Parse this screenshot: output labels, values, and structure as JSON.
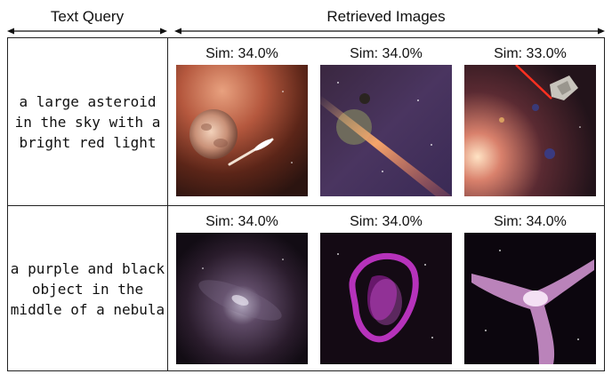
{
  "header": {
    "query_label": "Text Query",
    "results_label": "Retrieved Images"
  },
  "rows": [
    {
      "query": "a large asteroid in the sky with a bright red light",
      "results": [
        {
          "sim": "Sim: 34.0%"
        },
        {
          "sim": "Sim: 34.0%"
        },
        {
          "sim": "Sim: 33.0%"
        }
      ]
    },
    {
      "query": "a purple and black object in the middle of a nebula",
      "results": [
        {
          "sim": "Sim: 34.0%"
        },
        {
          "sim": "Sim: 34.0%"
        },
        {
          "sim": "Sim: 34.0%"
        }
      ]
    }
  ]
}
